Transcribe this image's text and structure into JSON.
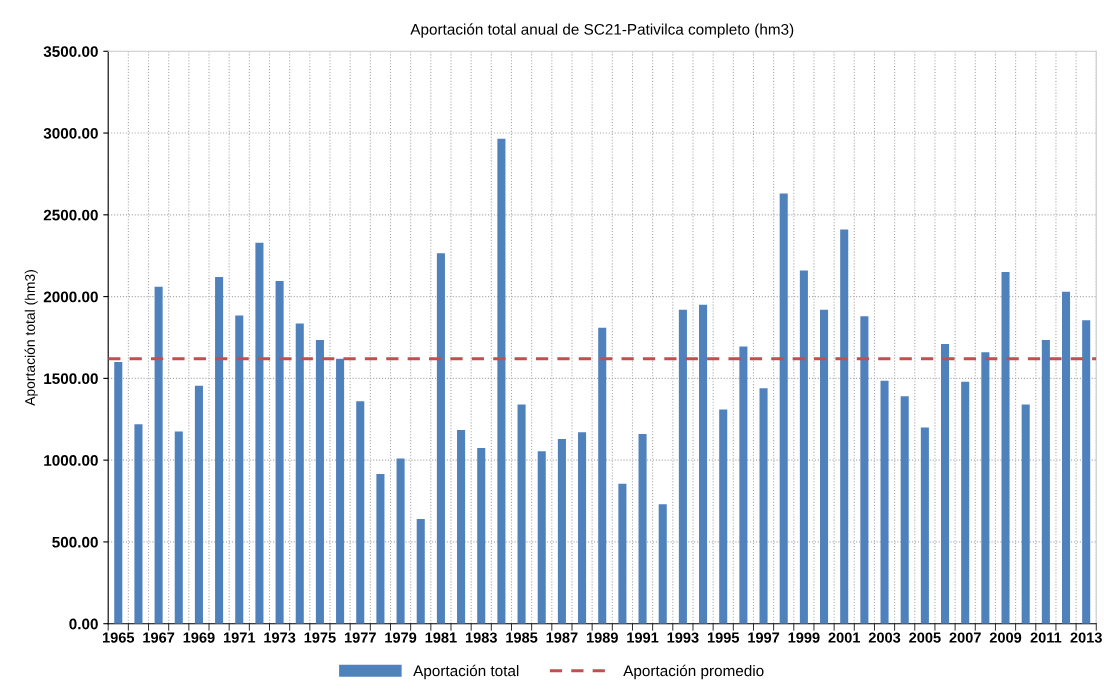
{
  "chart_data": {
    "type": "bar",
    "title": "Aportación total anual de SC21-Pativilca completo (hm3)",
    "ylabel": "Aportación total (hm3)",
    "categories": [
      "1965",
      null,
      "1967",
      null,
      "1969",
      null,
      "1971",
      null,
      "1973",
      null,
      "1975",
      null,
      "1977",
      null,
      "1979",
      null,
      "1981",
      null,
      "1983",
      null,
      "1985",
      null,
      "1987",
      null,
      "1989",
      null,
      "1991",
      null,
      "1993",
      null,
      "1995",
      null,
      "1997",
      null,
      "1999",
      null,
      "2001",
      null,
      "2003",
      null,
      "2005",
      null,
      "2007",
      null,
      "2009",
      null,
      "2011",
      null,
      "2013"
    ],
    "series": [
      {
        "name": "Aportación total",
        "color": "#4f81bd",
        "values": [
          1600,
          1220,
          2060,
          1175,
          1455,
          2120,
          1885,
          2330,
          2095,
          1835,
          1735,
          1620,
          1360,
          915,
          1010,
          640,
          2265,
          1185,
          1075,
          2965,
          1340,
          1055,
          1130,
          1170,
          1810,
          855,
          1160,
          730,
          1920,
          1950,
          1310,
          1695,
          1440,
          2630,
          2160,
          1920,
          2410,
          1880,
          1485,
          1390,
          1200,
          1710,
          1480,
          1660,
          2150,
          1340,
          1735,
          2030,
          1855
        ]
      }
    ],
    "ref_lines": [
      {
        "axis": "y",
        "value": 1620,
        "label": "Aportación promedio",
        "color": "#c0504d",
        "line_style": "dashed"
      }
    ],
    "ylim": [
      0,
      3500
    ],
    "yticks": [
      {
        "value": 0,
        "label": "0.00"
      },
      {
        "value": 500,
        "label": "500.00"
      },
      {
        "value": 1000,
        "label": "1000.00"
      },
      {
        "value": 1500,
        "label": "1500.00"
      },
      {
        "value": 2000,
        "label": "2000.00"
      },
      {
        "value": 2500,
        "label": "2500.00"
      },
      {
        "value": 3000,
        "label": "3000.00"
      },
      {
        "value": 3500,
        "label": "3500.00"
      }
    ],
    "grid": true,
    "legend": "bottom"
  }
}
